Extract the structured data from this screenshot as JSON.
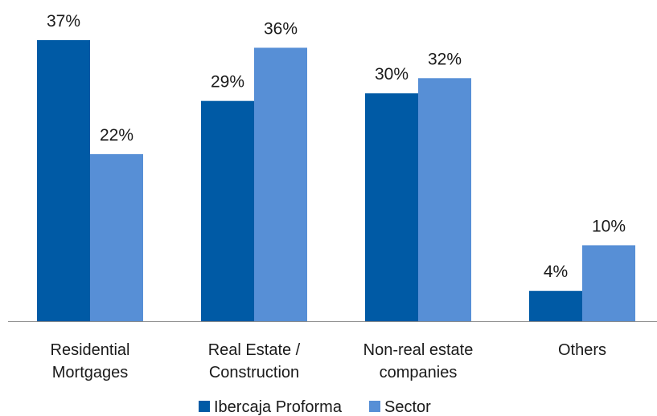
{
  "chart_data": {
    "type": "bar",
    "categories": [
      [
        "Residential",
        "Mortgages"
      ],
      [
        "Real Estate /",
        "Construction"
      ],
      [
        "Non-real estate",
        "companies"
      ],
      [
        "Others"
      ]
    ],
    "series": [
      {
        "name": "Ibercaja Proforma",
        "color": "#005aa5",
        "values": [
          37,
          29,
          30,
          4
        ],
        "labels": [
          "37%",
          "29%",
          "30%",
          "4%"
        ]
      },
      {
        "name": "Sector",
        "color": "#578fd6",
        "values": [
          22,
          36,
          32,
          10
        ],
        "labels": [
          "22%",
          "36%",
          "32%",
          "10%"
        ]
      }
    ],
    "title": "",
    "xlabel": "",
    "ylabel": "",
    "ylim": [
      0,
      37
    ],
    "grid": false,
    "legend": "bottom-center",
    "axis_color": "#8c8c8c"
  }
}
